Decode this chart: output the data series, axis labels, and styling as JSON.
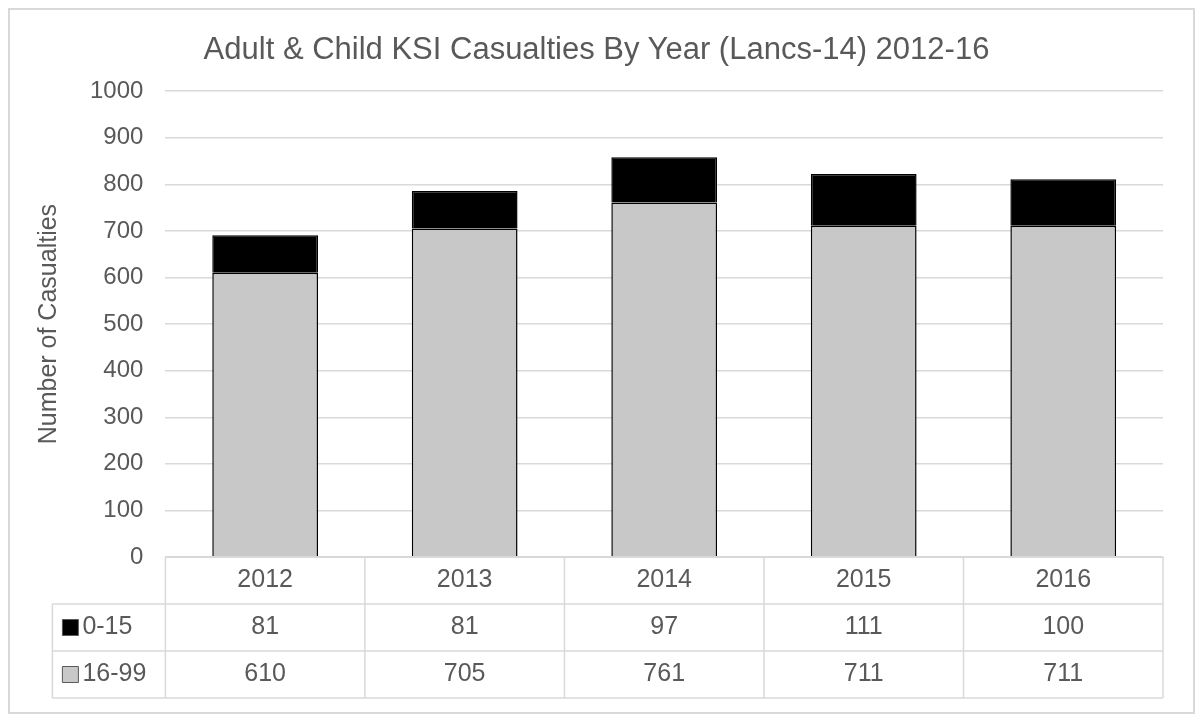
{
  "chart_data": {
    "type": "bar",
    "title": "Adult & Child KSI Casualties By Year (Lancs-14) 2012-16",
    "ylabel": "Number of Casualties",
    "categories": [
      "2012",
      "2013",
      "2014",
      "2015",
      "2016"
    ],
    "series": [
      {
        "name": "16-99",
        "color": "#c8c8c8",
        "values": [
          610,
          705,
          761,
          711,
          711
        ]
      },
      {
        "name": "0-15",
        "color": "#000000",
        "values": [
          81,
          81,
          97,
          111,
          100
        ]
      }
    ],
    "stacked": true,
    "ylim": [
      0,
      1000
    ],
    "yticks": [
      0,
      100,
      200,
      300,
      400,
      500,
      600,
      700,
      800,
      900,
      1000
    ],
    "grid": "y",
    "legend": "bottom",
    "data_labels": true
  }
}
